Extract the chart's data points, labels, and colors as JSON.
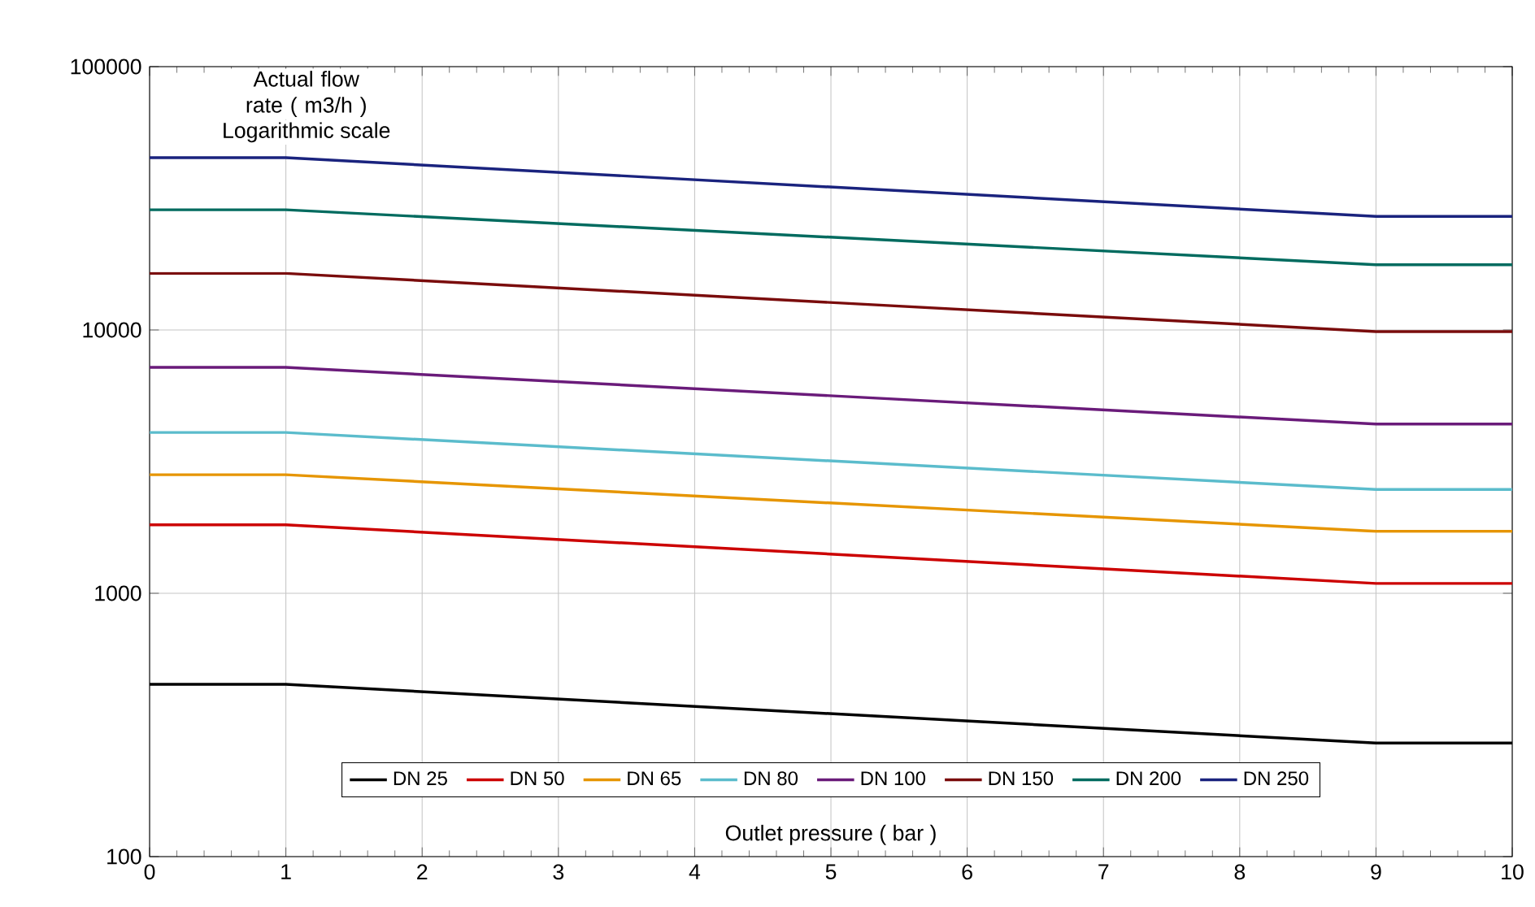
{
  "chart_data": {
    "type": "line",
    "ylabel": "Actual flow rate ( m3/h )",
    "xlabel": "Outlet pressure ( bar )",
    "annotations": [
      "Logarithmic scale"
    ],
    "x": [
      0,
      1,
      9,
      10
    ],
    "xlim": [
      0,
      10
    ],
    "xticks": [
      0,
      1,
      2,
      3,
      4,
      5,
      6,
      7,
      8,
      9,
      10
    ],
    "ylim": [
      100,
      100000
    ],
    "yticks": [
      100,
      1000,
      10000,
      100000
    ],
    "log": "y",
    "grid": true,
    "legend": "bottom",
    "marker": "none",
    "line_style": "solid",
    "series": [
      {
        "name": "DN 25",
        "color": "#000000",
        "values": [
          451,
          451,
          270,
          270
        ]
      },
      {
        "name": "DN 50",
        "color": "#cc0000",
        "values": [
          1820,
          1820,
          1090,
          1090
        ]
      },
      {
        "name": "DN 65",
        "color": "#e69500",
        "values": [
          2820,
          2820,
          1720,
          1720
        ]
      },
      {
        "name": "DN 80",
        "color": "#5bbccc",
        "values": [
          4080,
          4080,
          2480,
          2480
        ]
      },
      {
        "name": "DN 100",
        "color": "#6a1b7a",
        "values": [
          7210,
          7210,
          4390,
          4390
        ]
      },
      {
        "name": "DN 150",
        "color": "#7a0c0c",
        "values": [
          16400,
          16400,
          9860,
          9860
        ]
      },
      {
        "name": "DN 200",
        "color": "#006b5f",
        "values": [
          28600,
          28600,
          17700,
          17700
        ]
      },
      {
        "name": "DN 250",
        "color": "#1a237e",
        "values": [
          45100,
          45100,
          27000,
          27000
        ]
      }
    ]
  }
}
